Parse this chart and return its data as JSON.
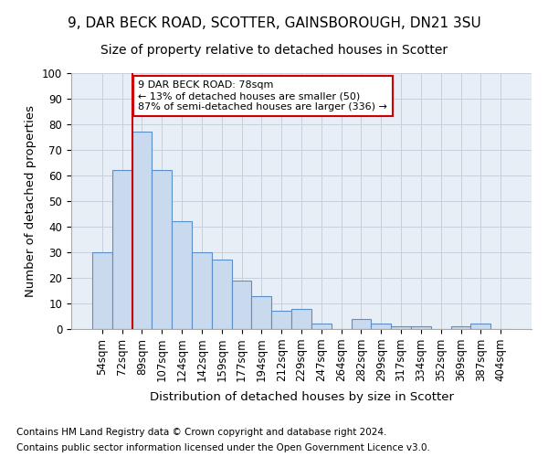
{
  "title_line1": "9, DAR BECK ROAD, SCOTTER, GAINSBOROUGH, DN21 3SU",
  "title_line2": "Size of property relative to detached houses in Scotter",
  "xlabel": "Distribution of detached houses by size in Scotter",
  "ylabel": "Number of detached properties",
  "categories": [
    "54sqm",
    "72sqm",
    "89sqm",
    "107sqm",
    "124sqm",
    "142sqm",
    "159sqm",
    "177sqm",
    "194sqm",
    "212sqm",
    "229sqm",
    "247sqm",
    "264sqm",
    "282sqm",
    "299sqm",
    "317sqm",
    "334sqm",
    "352sqm",
    "369sqm",
    "387sqm",
    "404sqm"
  ],
  "values": [
    30,
    62,
    77,
    62,
    42,
    30,
    27,
    19,
    13,
    7,
    8,
    2,
    0,
    4,
    2,
    1,
    1,
    0,
    1,
    2,
    0
  ],
  "bar_color": "#c9d9ee",
  "bar_edge_color": "#5b8fc9",
  "vline_color": "#cc0000",
  "vline_x": 1.5,
  "annotation_text": "9 DAR BECK ROAD: 78sqm\n← 13% of detached houses are smaller (50)\n87% of semi-detached houses are larger (336) →",
  "annotation_box_color": "#ffffff",
  "annotation_box_edge": "#cc0000",
  "ylim": [
    0,
    100
  ],
  "yticks": [
    0,
    10,
    20,
    30,
    40,
    50,
    60,
    70,
    80,
    90,
    100
  ],
  "grid_color": "#c8d0dc",
  "bg_color": "#e8eef5",
  "footer_line1": "Contains HM Land Registry data © Crown copyright and database right 2024.",
  "footer_line2": "Contains public sector information licensed under the Open Government Licence v3.0.",
  "title_fontsize": 11,
  "subtitle_fontsize": 10,
  "axis_label_fontsize": 9.5,
  "tick_fontsize": 8.5,
  "annotation_fontsize": 8,
  "footer_fontsize": 7.5
}
